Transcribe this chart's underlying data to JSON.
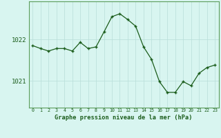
{
  "x": [
    0,
    1,
    2,
    3,
    4,
    5,
    6,
    7,
    8,
    9,
    10,
    11,
    12,
    13,
    14,
    15,
    16,
    17,
    18,
    19,
    20,
    21,
    22,
    23
  ],
  "y": [
    1021.85,
    1021.78,
    1021.72,
    1021.78,
    1021.78,
    1021.72,
    1021.93,
    1021.78,
    1021.82,
    1022.18,
    1022.55,
    1022.62,
    1022.48,
    1022.32,
    1021.82,
    1021.52,
    1020.98,
    1020.72,
    1020.72,
    1020.98,
    1020.88,
    1021.18,
    1021.32,
    1021.38
  ],
  "line_color": "#1a5c1a",
  "marker_color": "#1a5c1a",
  "bg_color": "#d8f5f0",
  "grid_color": "#b8ddd8",
  "xlabel": "Graphe pression niveau de la mer (hPa)",
  "xlabel_color": "#1a5c1a",
  "tick_color": "#1a5c1a",
  "ytick_labels": [
    "1021",
    "1022"
  ],
  "ytick_values": [
    1021.0,
    1022.0
  ],
  "xtick_labels": [
    "0",
    "1",
    "2",
    "3",
    "4",
    "5",
    "6",
    "7",
    "8",
    "9",
    "10",
    "11",
    "12",
    "13",
    "14",
    "15",
    "16",
    "17",
    "18",
    "19",
    "20",
    "21",
    "22",
    "23"
  ],
  "ylim_min": 1020.35,
  "ylim_max": 1022.92,
  "border_color": "#5a9c5a"
}
